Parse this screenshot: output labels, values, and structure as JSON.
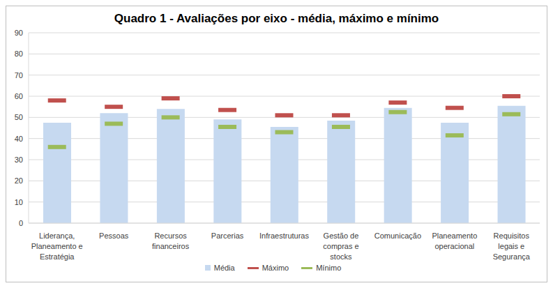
{
  "chart_data": {
    "type": "bar",
    "title": "Quadro 1 - Avaliações por eixo - média, máximo e mínimo",
    "categories": [
      "Liderança, Planeamento e Estratégia",
      "Pessoas",
      "Recursos financeiros",
      "Parcerias",
      "Infraestruturas",
      "Gestão de compras e stocks",
      "Comunicação",
      "Planeamento operacional",
      "Requisitos legais e Segurança"
    ],
    "series": [
      {
        "name": "Média",
        "type": "bar",
        "color": "#c6d9f0",
        "values": [
          47.5,
          52,
          54,
          49,
          45.5,
          48.5,
          54.5,
          47.5,
          55.5
        ]
      },
      {
        "name": "Máximo",
        "type": "scatter",
        "marker": "dash",
        "color": "#c0504d",
        "values": [
          58,
          55,
          59,
          53.5,
          51,
          51,
          57,
          54.5,
          60
        ]
      },
      {
        "name": "Mínimo",
        "type": "scatter",
        "marker": "dash",
        "color": "#9bbb59",
        "values": [
          36,
          47,
          50,
          45.5,
          43,
          45.5,
          52.5,
          41.5,
          51.5
        ]
      }
    ],
    "ylim": [
      0,
      90
    ],
    "yticks": [
      0,
      10,
      20,
      30,
      40,
      50,
      60,
      70,
      80,
      90
    ],
    "grid": true,
    "legend": "bottom"
  }
}
